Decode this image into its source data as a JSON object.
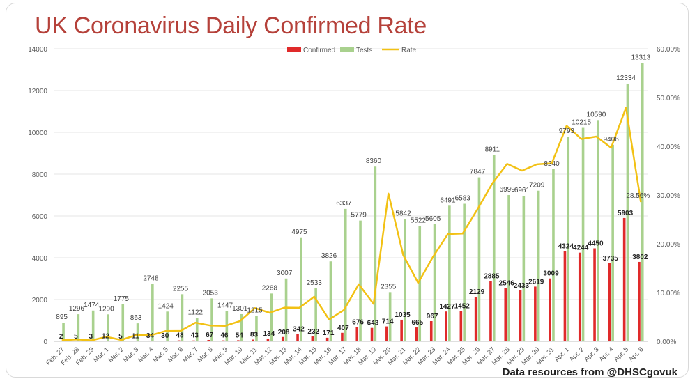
{
  "title": "UK Coronavirus Daily Confirmed Rate",
  "source": "Data resources from @DHSCgovuk",
  "colors": {
    "confirmed": "#e02a2a",
    "tests": "#a9d18e",
    "rate": "#f2c114",
    "title": "#b5413a"
  },
  "chart_data": {
    "type": "bar",
    "title": "UK Coronavirus Daily Confirmed Rate",
    "categories": [
      "Feb. 27",
      "Feb. 28",
      "Feb. 29",
      "Mar. 1",
      "Mar. 2",
      "Mar. 3",
      "Mar. 4",
      "Mar. 5",
      "Mar. 6",
      "Mar. 7",
      "Mar. 8",
      "Mar. 9",
      "Mar. 10",
      "Mar. 11",
      "Mar. 12",
      "Mar. 13",
      "Mar. 14",
      "Mar. 15",
      "Mar. 16",
      "Mar. 17",
      "Mar. 18",
      "Mar. 19",
      "Mar. 20",
      "Mar. 21",
      "Mar. 22",
      "Mar. 23",
      "Mar. 24",
      "Mar. 25",
      "Mar. 26",
      "Mar. 27",
      "Mar. 28",
      "Mar. 29",
      "Mar. 30",
      "Mar. 31",
      "Apr. 1",
      "Apr. 2",
      "Apr. 3",
      "Apr. 4",
      "Apr. 5",
      "Apr. 6"
    ],
    "series": [
      {
        "name": "Confirmed",
        "type": "bar",
        "axis": "left",
        "values": [
          2,
          5,
          3,
          12,
          5,
          11,
          34,
          30,
          48,
          43,
          67,
          46,
          54,
          83,
          134,
          208,
          342,
          232,
          171,
          407,
          676,
          643,
          714,
          1035,
          665,
          967,
          1427,
          1452,
          2129,
          2885,
          2546,
          2433,
          2619,
          3009,
          4324,
          4244,
          4450,
          3735,
          5903,
          3802
        ],
        "labels": [
          "2",
          "5",
          "3",
          "12",
          "5",
          "11",
          "34",
          "30",
          "48",
          "43",
          "67",
          "46",
          "54",
          "83",
          "134",
          "208",
          "342",
          "232",
          "171",
          "407",
          "676",
          "643",
          "714",
          "1035",
          "665",
          "967",
          "1427",
          "1452",
          "2129",
          "2885",
          "2546",
          "2433",
          "2619",
          "3009",
          "4324",
          "4244",
          "4450",
          "3735",
          "5903",
          "3802"
        ]
      },
      {
        "name": "Tests",
        "type": "bar",
        "axis": "left",
        "values": [
          895,
          1296,
          1474,
          1290,
          1775,
          863,
          2748,
          1424,
          2255,
          1122,
          2053,
          1447,
          1301,
          1215,
          2288,
          3007,
          4975,
          2533,
          3826,
          6337,
          5779,
          8360,
          2355,
          5842,
          5522,
          5605,
          6491,
          6583,
          7847,
          8911,
          6999,
          6961,
          7209,
          8240,
          9793,
          10215,
          10590,
          9406,
          12334,
          13313
        ],
        "labels": [
          "895",
          "1296",
          "1474",
          "1290",
          "1775",
          "863",
          "2748",
          "1424",
          "2255",
          "1122",
          "2053",
          "1447",
          "1301",
          "1215",
          "2288",
          "3007",
          "4975",
          "2533",
          "3826",
          "6337",
          "5779",
          "8360",
          "2355",
          "5842",
          "5522",
          "5605",
          "6491",
          "6583",
          "7847",
          "8911",
          "6999",
          "6961",
          "7209",
          "8240",
          "9793",
          "10215",
          "10590",
          "9406",
          "12334",
          "13313"
        ]
      },
      {
        "name": "Rate",
        "type": "line",
        "axis": "right",
        "values": [
          0.22,
          0.39,
          0.2,
          0.93,
          0.28,
          1.27,
          1.24,
          2.11,
          2.13,
          3.83,
          3.26,
          3.18,
          4.15,
          6.83,
          5.86,
          6.92,
          6.87,
          9.16,
          4.47,
          6.42,
          11.7,
          7.69,
          30.3,
          17.7,
          12.0,
          17.3,
          22.0,
          22.1,
          27.1,
          32.4,
          36.4,
          35.0,
          36.3,
          36.5,
          44.2,
          41.5,
          42.0,
          39.7,
          47.9,
          28.56
        ],
        "point_labels": [
          {
            "index": 39,
            "text": "28.56%"
          }
        ]
      }
    ],
    "xlabel": "",
    "ylabel": "",
    "ylim": [
      0,
      14000
    ],
    "y2lim": [
      0,
      60
    ],
    "yticks": [
      "0",
      "2000",
      "4000",
      "6000",
      "8000",
      "10000",
      "12000",
      "14000"
    ],
    "y2ticks": [
      "0.00%",
      "10.00%",
      "20.00%",
      "30.00%",
      "40.00%",
      "50.00%",
      "60.00%"
    ],
    "legend": {
      "position": "top",
      "entries": [
        "Confirmed",
        "Tests",
        "Rate"
      ]
    },
    "grid": true
  }
}
